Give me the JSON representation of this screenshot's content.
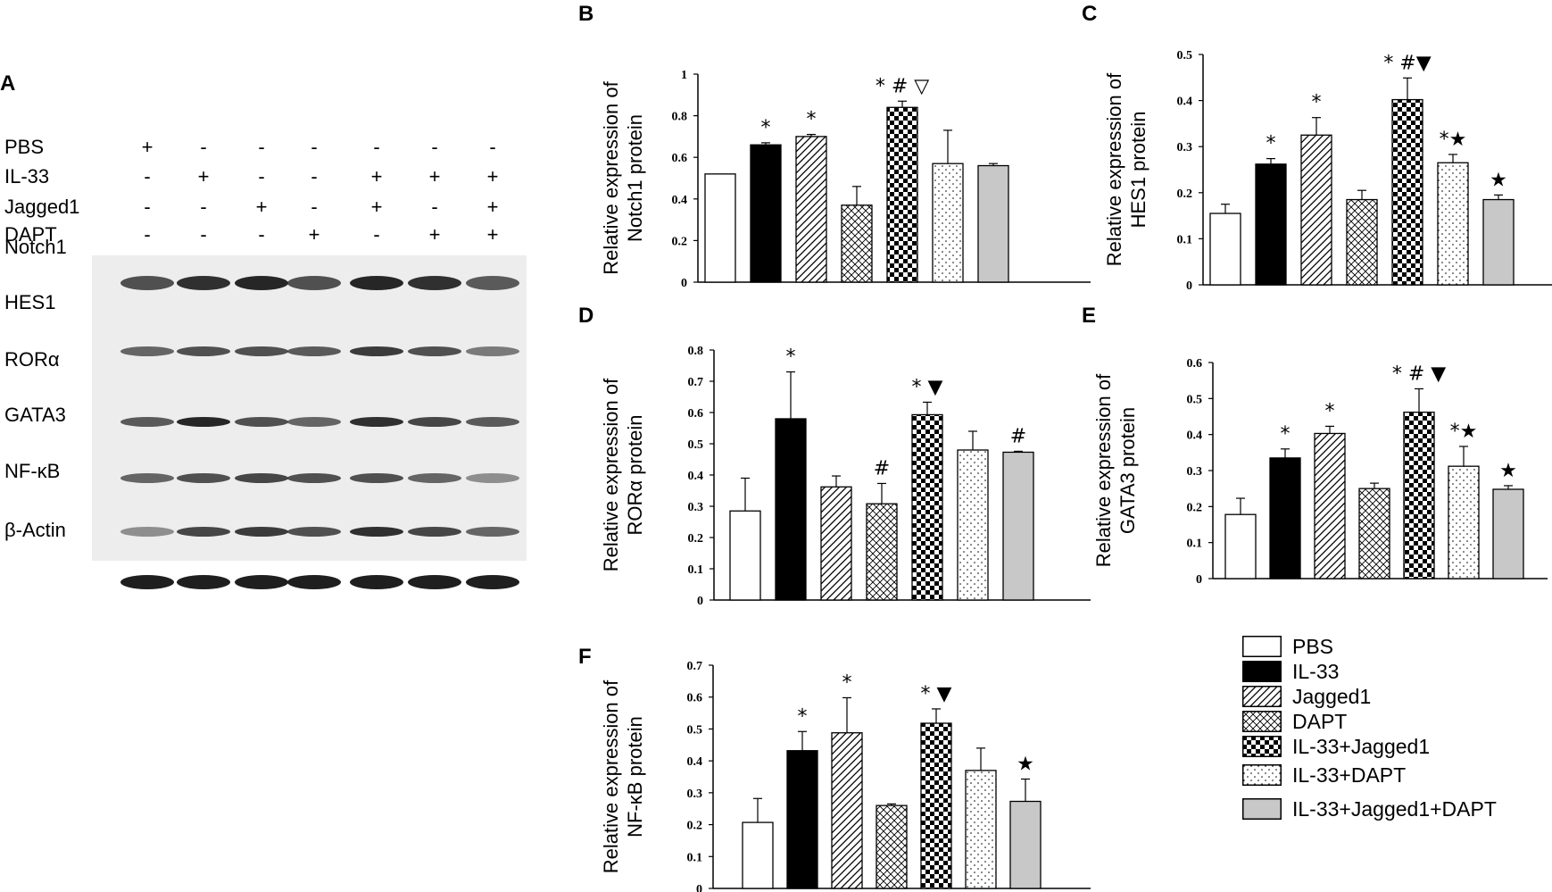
{
  "panel_letters": {
    "A": "A",
    "B": "B",
    "C": "C",
    "D": "D",
    "E": "E",
    "F": "F"
  },
  "blot": {
    "treatments": [
      {
        "name": "PBS",
        "signs": [
          "+",
          "-",
          "-",
          "-",
          "-",
          "-",
          "-"
        ]
      },
      {
        "name": "IL-33",
        "signs": [
          "-",
          "+",
          "-",
          "-",
          "+",
          "+",
          "+"
        ]
      },
      {
        "name": "Jagged1",
        "signs": [
          "-",
          "-",
          "+",
          "-",
          "+",
          "-",
          "+"
        ]
      },
      {
        "name": "DAPT",
        "signs": [
          "-",
          "-",
          "-",
          "+",
          "-",
          "+",
          "+"
        ]
      }
    ],
    "proteins": [
      "Notch1",
      "HES1",
      "RORα",
      "GATA3",
      "NF-κB",
      "β-Actin"
    ]
  },
  "legend": {
    "items": [
      {
        "label": "PBS",
        "pattern": "white"
      },
      {
        "label": "IL-33",
        "pattern": "black"
      },
      {
        "label": "Jagged1",
        "pattern": "diagonal"
      },
      {
        "label": "DAPT",
        "pattern": "crosshatch"
      },
      {
        "label": "IL-33+Jagged1",
        "pattern": "checker"
      },
      {
        "label": "IL-33+DAPT",
        "pattern": "dots"
      },
      {
        "label": "IL-33+Jagged1+DAPT",
        "pattern": "gray"
      }
    ]
  },
  "chart_data": [
    {
      "panel": "B",
      "type": "bar",
      "ylabel": [
        "Relative expression of",
        "Notch1 protein"
      ],
      "ylim": [
        0,
        1
      ],
      "yticks": [
        "0",
        "0.2",
        "0.4",
        "0.6",
        "0.8",
        "1"
      ],
      "categories": [
        "PBS",
        "IL-33",
        "Jagged1",
        "DAPT",
        "IL-33+Jagged1",
        "IL-33+DAPT",
        "IL-33+Jagged1+DAPT"
      ],
      "values": [
        0.52,
        0.66,
        0.7,
        0.37,
        0.84,
        0.57,
        0.56
      ],
      "errors": [
        0,
        0.01,
        0.01,
        0.09,
        0.03,
        0.16,
        0.01
      ],
      "annotations": [
        "",
        "*",
        "*",
        "",
        "* # ▽",
        "",
        ""
      ]
    },
    {
      "panel": "C",
      "type": "bar",
      "ylabel": [
        "Relative expression of",
        "HES1 protein"
      ],
      "ylim": [
        0,
        0.5
      ],
      "yticks": [
        "0",
        "0.1",
        "0.2",
        "0.3",
        "0.4",
        "0.5"
      ],
      "categories": [
        "PBS",
        "IL-33",
        "Jagged1",
        "DAPT",
        "IL-33+Jagged1",
        "IL-33+DAPT",
        "IL-33+Jagged1+DAPT"
      ],
      "values": [
        0.155,
        0.262,
        0.325,
        0.185,
        0.402,
        0.265,
        0.185
      ],
      "errors": [
        0.02,
        0.012,
        0.038,
        0.02,
        0.047,
        0.018,
        0.01
      ],
      "annotations": [
        "",
        "*",
        "*",
        "",
        "* #▼",
        "*★",
        "★"
      ]
    },
    {
      "panel": "D",
      "type": "bar",
      "ylabel": [
        "Relative expression of",
        "RORα protein"
      ],
      "ylim": [
        0,
        0.8
      ],
      "yticks": [
        "0",
        "0.1",
        "0.2",
        "0.3",
        "0.4",
        "0.5",
        "0.6",
        "0.7",
        "0.8"
      ],
      "categories": [
        "PBS",
        "IL-33",
        "Jagged1",
        "DAPT",
        "IL-33+Jagged1",
        "IL-33+DAPT",
        "IL-33+Jagged1+DAPT"
      ],
      "values": [
        0.285,
        0.58,
        0.362,
        0.308,
        0.593,
        0.48,
        0.473
      ],
      "errors": [
        0.105,
        0.15,
        0.035,
        0.065,
        0.04,
        0.06,
        0.003
      ],
      "annotations": [
        "",
        "*",
        "",
        "#",
        "* ▼",
        "",
        "#"
      ]
    },
    {
      "panel": "E",
      "type": "bar",
      "ylabel": [
        "Relative expression of",
        "GATA3 protein"
      ],
      "ylim": [
        0,
        0.6
      ],
      "yticks": [
        "0",
        "0.1",
        "0.2",
        "0.3",
        "0.4",
        "0.5",
        "0.6"
      ],
      "categories": [
        "PBS",
        "IL-33",
        "Jagged1",
        "DAPT",
        "IL-33+Jagged1",
        "IL-33+DAPT",
        "IL-33+Jagged1+DAPT"
      ],
      "values": [
        0.178,
        0.335,
        0.403,
        0.25,
        0.462,
        0.312,
        0.248
      ],
      "errors": [
        0.045,
        0.025,
        0.02,
        0.015,
        0.065,
        0.055,
        0.01
      ],
      "annotations": [
        "",
        "*",
        "*",
        "",
        "* # ▼",
        "*★",
        "★"
      ]
    },
    {
      "panel": "F",
      "type": "bar",
      "ylabel": [
        "Relative expression of",
        "NF-κB protein"
      ],
      "ylim": [
        0,
        0.7
      ],
      "yticks": [
        "0",
        "0.1",
        "0.2",
        "0.3",
        "0.4",
        "0.5",
        "0.6",
        "0.7"
      ],
      "categories": [
        "PBS",
        "IL-33",
        "Jagged1",
        "DAPT",
        "IL-33+Jagged1",
        "IL-33+DAPT",
        "IL-33+Jagged1+DAPT"
      ],
      "values": [
        0.207,
        0.432,
        0.488,
        0.26,
        0.518,
        0.37,
        0.273
      ],
      "errors": [
        0.075,
        0.06,
        0.11,
        0.005,
        0.045,
        0.07,
        0.07
      ],
      "annotations": [
        "",
        "*",
        "*",
        "",
        "* ▼",
        "",
        "★"
      ]
    }
  ]
}
